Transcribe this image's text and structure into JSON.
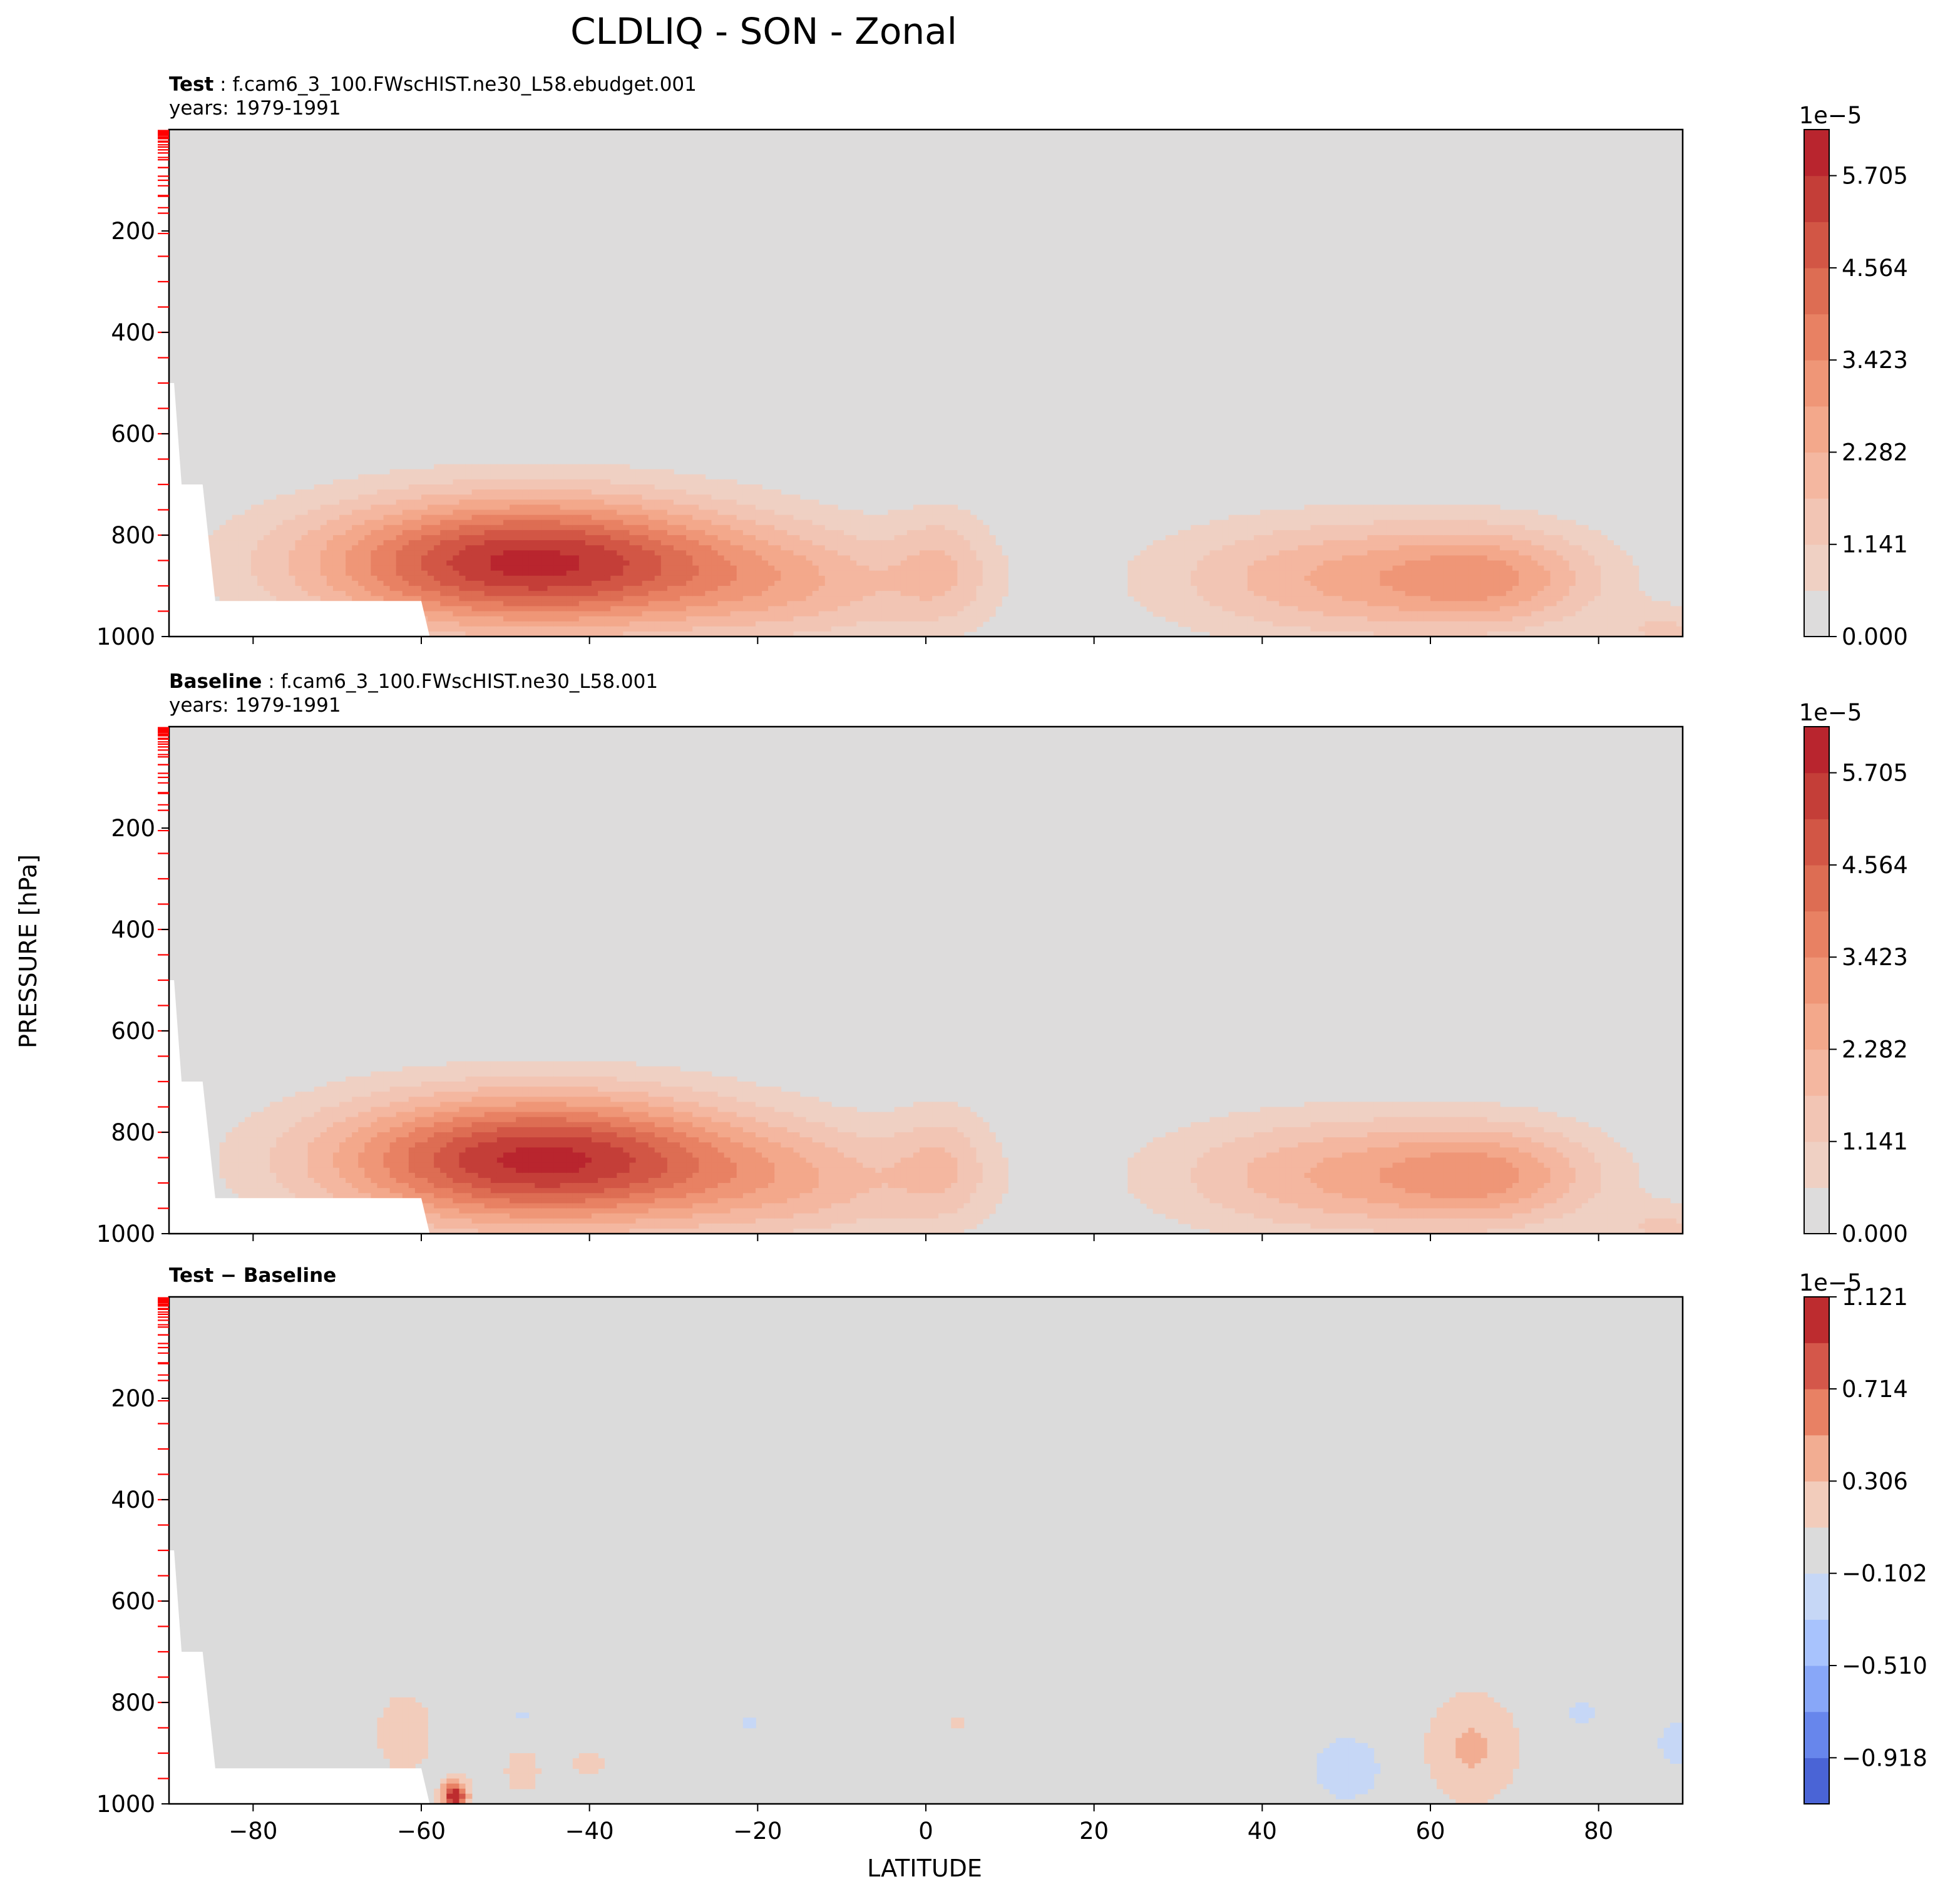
{
  "figure": {
    "title": "CLDLIQ - SON - Zonal",
    "ylabel": "PRESSURE [hPa]",
    "xlabel": "LATITUDE"
  },
  "colors": {
    "background_level": "#e2dbd6",
    "diff_background": "#dbdbdb",
    "missing": "#ffffff",
    "frame": "#000000",
    "level_ticks": "#ff0000"
  },
  "chart_data": [
    {
      "type": "heatmap",
      "panel": "test",
      "label_bold": "Test",
      "label_rest": " : f.cam6_3_100.FWscHIST.ne30_L58.ebudget.001",
      "years": "years: 1979-1991",
      "x_range": [
        -90,
        90
      ],
      "y_range": [
        1000,
        0
      ],
      "x_ticks": [
        -80,
        -60,
        -40,
        -20,
        0,
        20,
        40,
        60,
        80
      ],
      "y_ticks": [
        200,
        400,
        600,
        800,
        1000
      ],
      "x_tick_labels_shown": false,
      "colorbar": {
        "exponent": "1e−5",
        "ticks": [
          "0.000",
          "1.141",
          "2.282",
          "3.423",
          "4.564",
          "5.705"
        ],
        "tick_values": [
          0.0,
          1.141,
          2.282,
          3.423,
          4.564,
          5.705
        ],
        "levels": [
          0,
          0.5705,
          1.141,
          1.7115,
          2.282,
          2.8525,
          3.423,
          3.9935,
          4.564,
          5.1345,
          5.705,
          6.2755
        ],
        "colors": [
          "#dddcdc",
          "#efd0c3",
          "#f2c5b4",
          "#f4b7a0",
          "#f3a88b",
          "#ef9677",
          "#e88163",
          "#dd6d53",
          "#d25645",
          "#c43e38",
          "#b9252e"
        ]
      },
      "blobs": [
        {
          "lat": -47,
          "p": 855,
          "wlat": 26,
          "wp": 130,
          "amp": 5.9
        },
        {
          "lat": -14,
          "p": 905,
          "wlat": 18,
          "wp": 110,
          "amp": 1.4
        },
        {
          "lat": 2,
          "p": 860,
          "wlat": 6,
          "wp": 120,
          "amp": 1.2
        },
        {
          "lat": 50,
          "p": 885,
          "wlat": 22,
          "wp": 120,
          "amp": 2.3
        },
        {
          "lat": 68,
          "p": 885,
          "wlat": 13,
          "wp": 100,
          "amp": 2.0
        },
        {
          "lat": 88,
          "p": 990,
          "wlat": 6,
          "wp": 50,
          "amp": 1.2
        }
      ]
    },
    {
      "type": "heatmap",
      "panel": "baseline",
      "label_bold": "Baseline",
      "label_rest": " : f.cam6_3_100.FWscHIST.ne30_L58.001",
      "years": "years: 1979-1991",
      "x_range": [
        -90,
        90
      ],
      "y_range": [
        1000,
        0
      ],
      "x_ticks": [
        -80,
        -60,
        -40,
        -20,
        0,
        20,
        40,
        60,
        80
      ],
      "y_ticks": [
        200,
        400,
        600,
        800,
        1000
      ],
      "x_tick_labels_shown": false,
      "colorbar": {
        "exponent": "1e−5",
        "ticks": [
          "0.000",
          "1.141",
          "2.282",
          "3.423",
          "4.564",
          "5.705"
        ],
        "tick_values": [
          0.0,
          1.141,
          2.282,
          3.423,
          4.564,
          5.705
        ],
        "levels": [
          0,
          0.5705,
          1.141,
          1.7115,
          2.282,
          2.8525,
          3.423,
          3.9935,
          4.564,
          5.1345,
          5.705,
          6.2755
        ],
        "colors": [
          "#dddcdc",
          "#efd0c3",
          "#f2c5b4",
          "#f4b7a0",
          "#f3a88b",
          "#ef9677",
          "#e88163",
          "#dd6d53",
          "#d25645",
          "#c43e38",
          "#b9252e"
        ]
      },
      "blobs": [
        {
          "lat": -46,
          "p": 855,
          "wlat": 25,
          "wp": 130,
          "amp": 5.9
        },
        {
          "lat": -14,
          "p": 905,
          "wlat": 18,
          "wp": 110,
          "amp": 1.4
        },
        {
          "lat": 2,
          "p": 860,
          "wlat": 6,
          "wp": 120,
          "amp": 1.2
        },
        {
          "lat": 50,
          "p": 885,
          "wlat": 22,
          "wp": 120,
          "amp": 2.3
        },
        {
          "lat": 68,
          "p": 885,
          "wlat": 13,
          "wp": 100,
          "amp": 2.0
        },
        {
          "lat": 88,
          "p": 990,
          "wlat": 6,
          "wp": 50,
          "amp": 1.2
        }
      ]
    },
    {
      "type": "heatmap",
      "panel": "difference",
      "label_bold": "Test − Baseline",
      "label_rest": "",
      "years": "",
      "x_range": [
        -90,
        90
      ],
      "y_range": [
        1000,
        0
      ],
      "x_ticks": [
        -80,
        -60,
        -40,
        -20,
        0,
        20,
        40,
        60,
        80
      ],
      "y_ticks": [
        200,
        400,
        600,
        800,
        1000
      ],
      "x_tick_labels_shown": true,
      "colorbar": {
        "exponent": "1e−5",
        "ticks": [
          "−0.918",
          "−0.510",
          "−0.102",
          "0.306",
          "0.714",
          "1.121"
        ],
        "tick_values": [
          -0.918,
          -0.51,
          -0.102,
          0.306,
          0.714,
          1.121
        ],
        "levels": [
          -1.122,
          -0.918,
          -0.714,
          -0.51,
          -0.306,
          -0.102,
          0.102,
          0.306,
          0.51,
          0.714,
          0.918,
          1.121
        ],
        "colors": [
          "#4a64d6",
          "#6786ec",
          "#88a7f8",
          "#a8c3fd",
          "#c6d7f6",
          "#dbdbdb",
          "#f2ccbb",
          "#f2ad92",
          "#e88164",
          "#d4574a",
          "#bd2c2f"
        ]
      },
      "blobs": [
        {
          "lat": -62,
          "p": 860,
          "wlat": 3,
          "wp": 70,
          "amp": 0.3
        },
        {
          "lat": -56,
          "p": 985,
          "wlat": 1.5,
          "wp": 30,
          "amp": 1.1
        },
        {
          "lat": -48,
          "p": 935,
          "wlat": 2,
          "wp": 40,
          "amp": 0.25
        },
        {
          "lat": -40,
          "p": 920,
          "wlat": 2,
          "wp": 20,
          "amp": 0.25
        },
        {
          "lat": -48,
          "p": 825,
          "wlat": 1,
          "wp": 15,
          "amp": -0.15
        },
        {
          "lat": -37,
          "p": 840,
          "wlat": 1.5,
          "wp": 5,
          "amp": -0.15
        },
        {
          "lat": -21,
          "p": 840,
          "wlat": 1,
          "wp": 15,
          "amp": -0.15
        },
        {
          "lat": 3.5,
          "p": 840,
          "wlat": 1,
          "wp": 15,
          "amp": 0.2
        },
        {
          "lat": 50,
          "p": 930,
          "wlat": 4,
          "wp": 60,
          "amp": -0.25
        },
        {
          "lat": 65,
          "p": 890,
          "wlat": 5,
          "wp": 100,
          "amp": 0.35
        },
        {
          "lat": 78,
          "p": 820,
          "wlat": 2,
          "wp": 20,
          "amp": -0.2
        },
        {
          "lat": 89,
          "p": 880,
          "wlat": 2,
          "wp": 50,
          "amp": -0.2
        }
      ]
    }
  ]
}
